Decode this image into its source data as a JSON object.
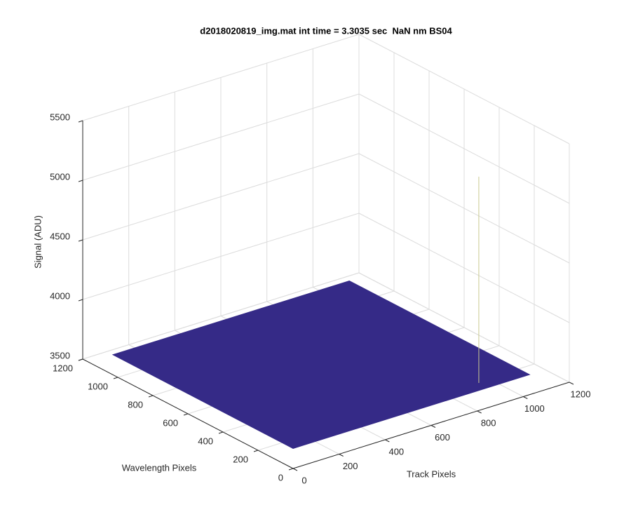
{
  "chart_data": {
    "type": "surface3d",
    "title": "d2018020819_img.mat int time = 3.3035 sec  NaN nm BS04",
    "xlabel": "Track Pixels",
    "ylabel": "Wavelength Pixels",
    "zlabel": "Signal (ADU)",
    "xlim": [
      0,
      1200
    ],
    "xticks": [
      0,
      200,
      400,
      600,
      800,
      1000,
      1200
    ],
    "ylim": [
      0,
      1200
    ],
    "yticks": [
      0,
      200,
      400,
      600,
      800,
      1000,
      1200
    ],
    "zlim": [
      3500,
      5500
    ],
    "zticks": [
      3500,
      4000,
      4500,
      5000,
      5500
    ],
    "grid": true,
    "surface": {
      "x": [
        1,
        1024
      ],
      "y": [
        1,
        1024
      ],
      "z": 3670,
      "color": "#352a87"
    },
    "peak": {
      "x": 845,
      "y": 50,
      "z": 5400,
      "color": "#c9c98f"
    }
  }
}
